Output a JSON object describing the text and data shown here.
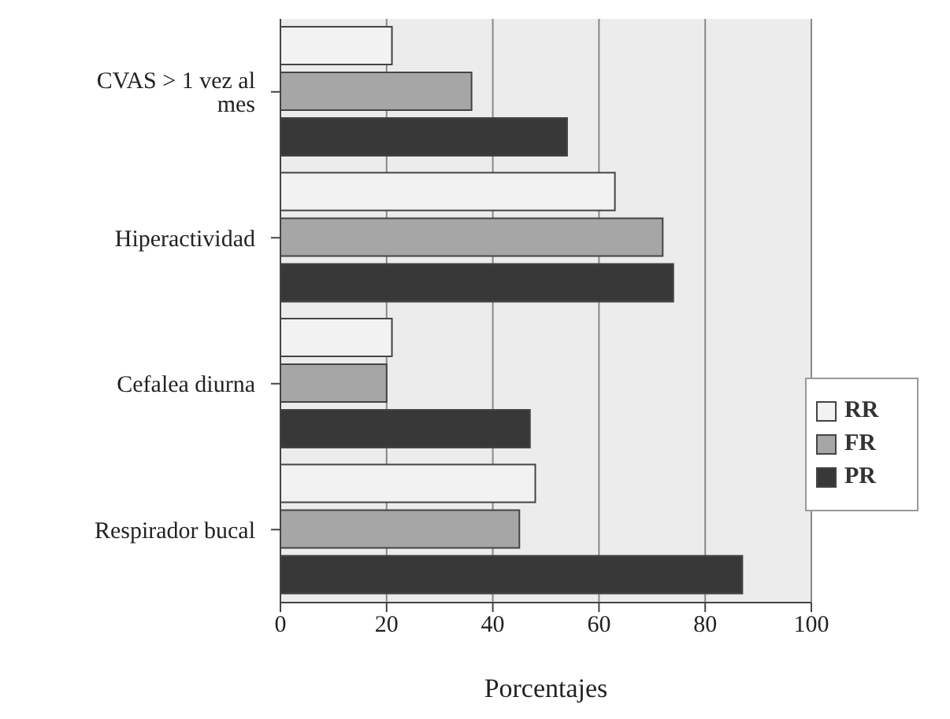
{
  "chart_data": {
    "type": "bar",
    "orientation": "horizontal",
    "xlabel": "Porcentajes",
    "categories": [
      "CVAS > 1 vez al mes",
      "Hiperactividad",
      "Cefalea diurna",
      "Respirador bucal"
    ],
    "series": [
      {
        "name": "RR",
        "color": "#f2f2f2",
        "values": [
          21,
          63,
          21,
          48
        ]
      },
      {
        "name": "FR",
        "color": "#a6a6a6",
        "values": [
          36,
          72,
          20,
          45
        ]
      },
      {
        "name": "PR",
        "color": "#383838",
        "values": [
          54,
          74,
          47,
          87
        ]
      }
    ],
    "xlim": [
      0,
      100
    ],
    "xticks": [
      0,
      20,
      40,
      60,
      80,
      100
    ],
    "grid": "x",
    "legend": "right"
  }
}
